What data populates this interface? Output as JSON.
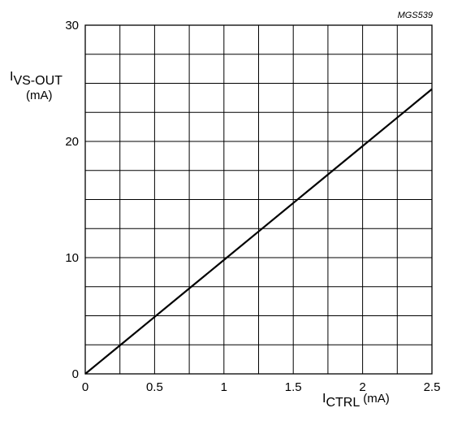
{
  "chart_data": {
    "type": "line",
    "figure_id": "MGS539",
    "y_label": {
      "main": "I",
      "subscript": "VS-OUT",
      "unit": "(mA)"
    },
    "x_label": {
      "main": "I",
      "subscript": "CTRL",
      "unit": "(mA)"
    },
    "xlim": [
      0,
      2.5
    ],
    "ylim": [
      0,
      30
    ],
    "x_ticks": [
      "0",
      "0.5",
      "1",
      "1.5",
      "2",
      "2.5"
    ],
    "y_ticks": [
      "0",
      "10",
      "20",
      "30"
    ],
    "x_tick_values": [
      0,
      0.5,
      1,
      1.5,
      2,
      2.5
    ],
    "y_tick_values": [
      0,
      10,
      20,
      30
    ],
    "x_grid_step": 0.25,
    "y_grid_step": 2.5,
    "grid": true,
    "series": [
      {
        "x": [
          0,
          0.25,
          0.5,
          0.75,
          1,
          1.25,
          1.5,
          1.75,
          2,
          2.25,
          2.5
        ],
        "y": [
          0,
          2.45,
          4.9,
          7.35,
          9.8,
          12.25,
          14.7,
          17.15,
          19.6,
          22.05,
          24.5
        ]
      }
    ],
    "line_color": "#000000"
  }
}
